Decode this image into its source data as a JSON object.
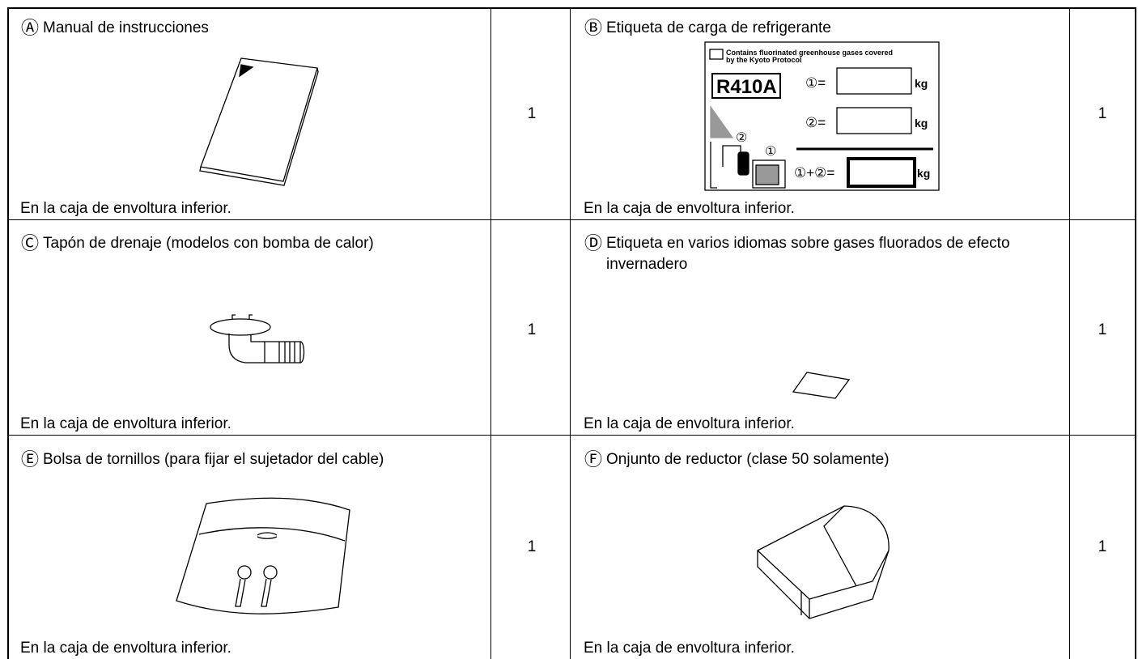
{
  "items": [
    {
      "marker": "Ⓐ",
      "title": "Manual de instrucciones",
      "note": "En la caja de envoltura inferior.",
      "quantity": 1
    },
    {
      "marker": "Ⓑ",
      "title": "Etiqueta de carga de refrigerante",
      "note": "En la caja de envoltura inferior.",
      "quantity": 1
    },
    {
      "marker": "Ⓒ",
      "title": "Tapón de drenaje (modelos con bomba de calor)",
      "note": "En la caja de envoltura inferior.",
      "quantity": 1
    },
    {
      "marker": "Ⓓ",
      "title": "Etiqueta en varios idiomas sobre gases fluorados de efecto invernadero",
      "note": "En la caja de envoltura inferior.",
      "quantity": 1
    },
    {
      "marker": "Ⓔ",
      "title": "Bolsa de tornillos (para fijar el sujetador del cable)",
      "note": "En la caja de envoltura inferior.",
      "quantity": 1
    },
    {
      "marker": "Ⓕ",
      "title": "Onjunto de reductor (clase 50 solamente)",
      "note": "En la caja de envoltura inferior.",
      "quantity": 1
    }
  ],
  "refrigerant_label": {
    "heading_line1": "Contains fluorinated greenhouse gases covered",
    "heading_line2": "by the Kyoto Protocol",
    "refrigerant": "R410A",
    "line1": "①=",
    "line2": "②=",
    "total": "①+②=",
    "unit": "kg",
    "marker1": "①",
    "marker2": "②"
  }
}
